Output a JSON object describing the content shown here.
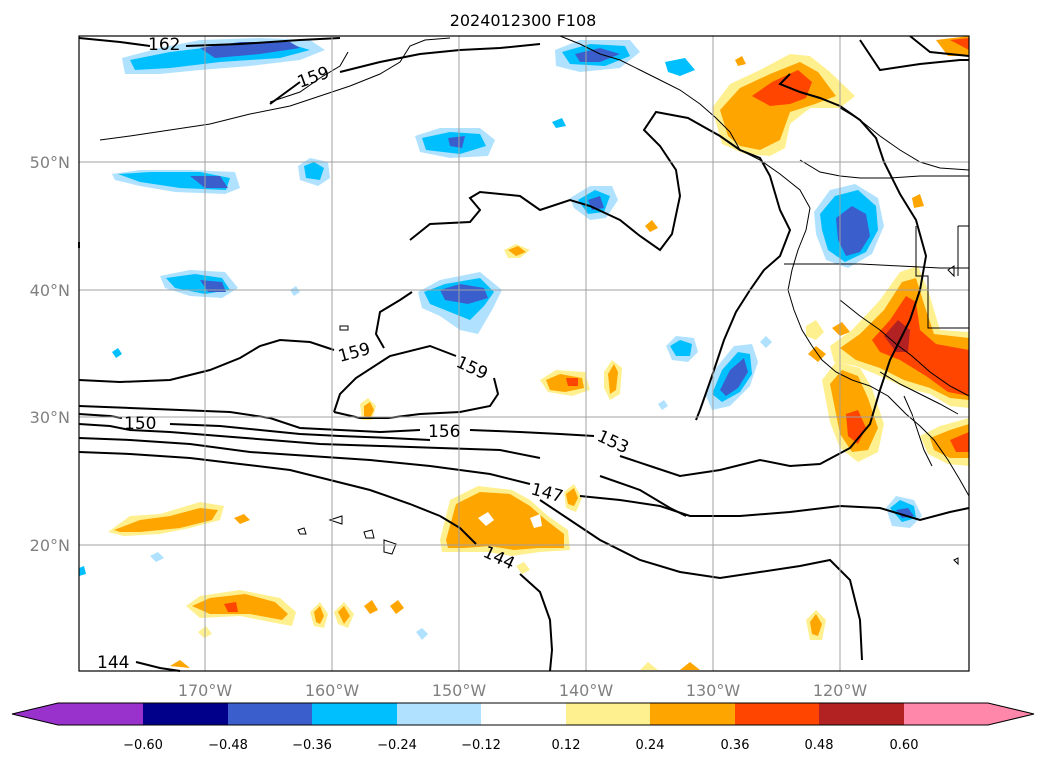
{
  "title": "2024012300 F108",
  "lat_labels": [
    "50°N",
    "40°N",
    "30°N",
    "20°N"
  ],
  "lon_labels": [
    "170°W",
    "160°W",
    "150°W",
    "140°W",
    "130°W",
    "120°W"
  ],
  "contour_labels": [
    "162",
    "159",
    "159",
    "159",
    "156",
    "153",
    "150",
    "147",
    "144",
    "144"
  ],
  "colorbar": {
    "tick_labels": [
      "−0.60",
      "−0.48",
      "−0.36",
      "−0.24",
      "−0.12",
      "0.12",
      "0.24",
      "0.36",
      "0.48",
      "0.60"
    ],
    "colors": [
      "#9932cc",
      "#00008b",
      "#3a5fcd",
      "#00bfff",
      "#b0e2ff",
      "#ffffff",
      "#fff08f",
      "#ffa500",
      "#ff4500",
      "#b22222",
      "#ff88aa"
    ]
  }
}
